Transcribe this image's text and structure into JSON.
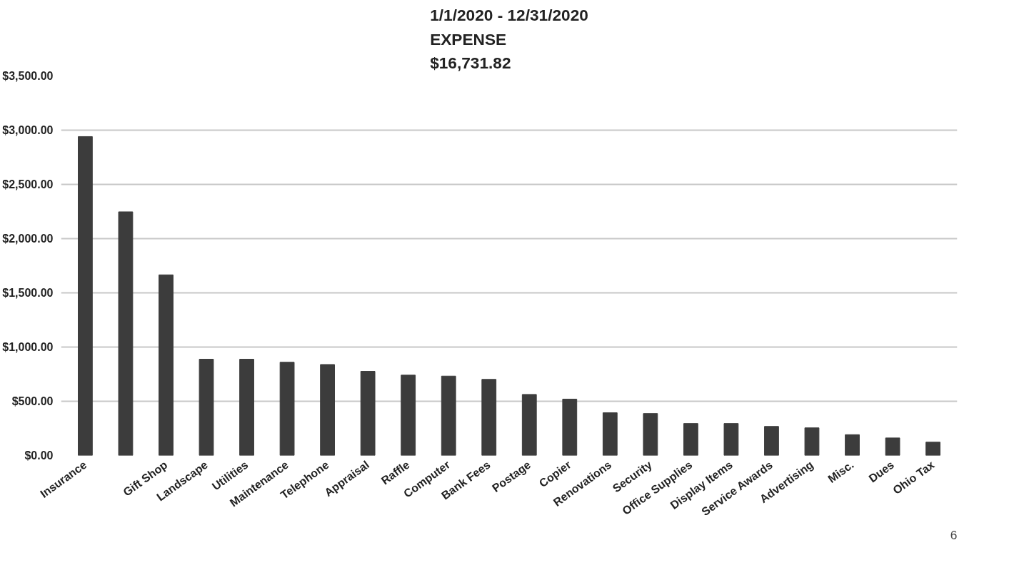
{
  "chart_data": {
    "type": "bar",
    "title": "1/1/2020 - 12/31/2020\nEXPENSE\n$16,731.82",
    "categories": [
      "Insurance",
      null,
      "Gift Shop",
      "Landscape",
      "Utilities",
      "Maintenance",
      "Telephone",
      "Appraisal",
      "Raffle",
      "Computer",
      "Bank Fees",
      "Postage",
      "Copier",
      "Renovations",
      "Security",
      "Office Supplies",
      "Display Items",
      "Service Awards",
      "Advertising",
      "Misc.",
      "Dues",
      "Ohio Tax"
    ],
    "values": [
      2941,
      2247,
      1666,
      888,
      888,
      860,
      839,
      776,
      741,
      732,
      702,
      563,
      520,
      394,
      387,
      295,
      295,
      268,
      255,
      192,
      162,
      123
    ],
    "color": "#3c3c3c",
    "ylim": [
      0,
      3500
    ],
    "yticks": [
      {
        "value": 0,
        "label": "$0.00"
      },
      {
        "value": 500,
        "label": "$500.00"
      },
      {
        "value": 1000,
        "label": "$1,000.00"
      },
      {
        "value": 1500,
        "label": "$1,500.00"
      },
      {
        "value": 2000,
        "label": "$2,000.00"
      },
      {
        "value": 2500,
        "label": "$2,500.00"
      },
      {
        "value": 3000,
        "label": "$3,000.00"
      },
      {
        "value": 3500,
        "label": "$3,500.00"
      }
    ],
    "grid": "y",
    "annotations": [
      "6"
    ]
  }
}
